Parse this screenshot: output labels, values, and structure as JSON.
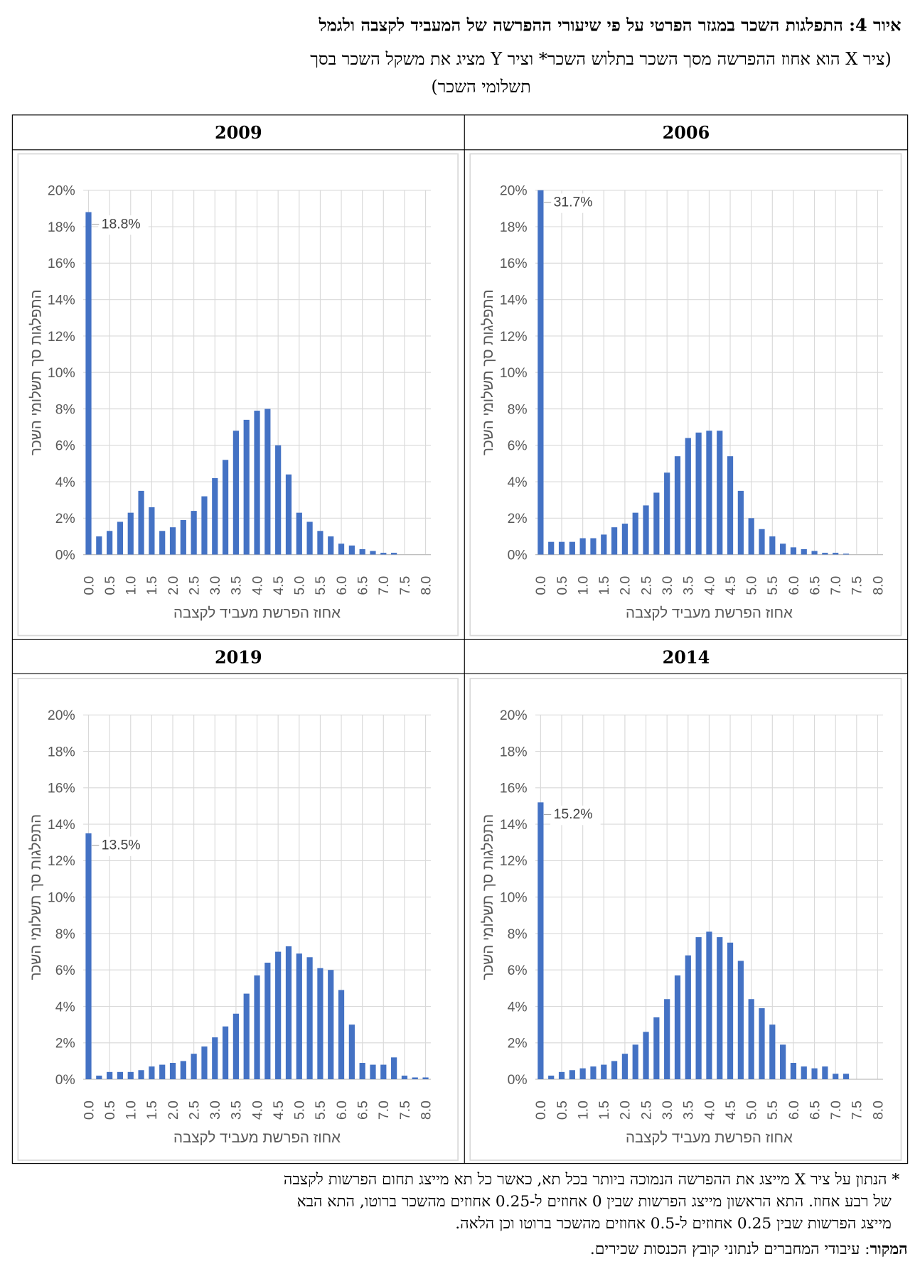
{
  "header": {
    "title": "איור 4: התפלגות השכר במגזר הפרטי על פי שיעורי ההפרשה של המעביד לקצבה ולגמל",
    "subtitle": [
      "(ציר X הוא אחוז ההפרשה מסך השכר בתלוש השכר* וציר Y מציג את משקל השכר בסך",
      "תשלומי השכר)"
    ]
  },
  "chart_data": [
    {
      "type": "bar",
      "title": "2006",
      "xlabel": "אחוז הפרשת מעביד לקצבה",
      "ylabel": "התפלגות סך תשלומי השכר",
      "color": "#4472c4",
      "grid": true,
      "categories": [
        "0.0",
        null,
        "0.5",
        null,
        "1.0",
        null,
        "1.5",
        null,
        "2.0",
        null,
        "2.5",
        null,
        "3.0",
        null,
        "3.5",
        null,
        "4.0",
        null,
        "4.5",
        null,
        "5.0",
        null,
        "5.5",
        null,
        "6.0",
        null,
        "6.5",
        null,
        "7.0",
        null,
        "7.5",
        null,
        "8.0"
      ],
      "values": [
        31.7,
        0.7,
        0.7,
        0.7,
        0.9,
        0.9,
        1.1,
        1.5,
        1.7,
        2.3,
        2.7,
        3.4,
        4.5,
        5.4,
        6.4,
        6.7,
        6.8,
        6.8,
        5.4,
        3.5,
        2.0,
        1.4,
        1.0,
        0.6,
        0.4,
        0.3,
        0.2,
        0.1,
        0.1,
        0.05,
        0,
        0,
        0
      ],
      "value_labels": [
        "31.7%",
        null,
        null,
        null,
        null,
        null,
        null,
        null,
        null,
        null,
        null,
        null,
        null,
        null,
        null,
        null,
        null,
        null,
        null,
        null,
        null,
        null,
        null,
        null,
        null,
        null,
        null,
        null,
        null,
        null,
        null,
        null,
        null
      ],
      "ylim": [
        0,
        20
      ],
      "yticks": [
        {
          "value": 0,
          "label": "0%"
        },
        {
          "value": 2,
          "label": "2%"
        },
        {
          "value": 4,
          "label": "4%"
        },
        {
          "value": 6,
          "label": "6%"
        },
        {
          "value": 8,
          "label": "8%"
        },
        {
          "value": 10,
          "label": "10%"
        },
        {
          "value": 12,
          "label": "12%"
        },
        {
          "value": 14,
          "label": "14%"
        },
        {
          "value": 16,
          "label": "16%"
        },
        {
          "value": 18,
          "label": "18%"
        },
        {
          "value": 20,
          "label": "20%"
        }
      ]
    },
    {
      "type": "bar",
      "title": "2009",
      "xlabel": "אחוז הפרשת מעביד לקצבה",
      "ylabel": "התפלגות סך תשלומי השכר",
      "color": "#4472c4",
      "grid": true,
      "categories": [
        "0.0",
        null,
        "0.5",
        null,
        "1.0",
        null,
        "1.5",
        null,
        "2.0",
        null,
        "2.5",
        null,
        "3.0",
        null,
        "3.5",
        null,
        "4.0",
        null,
        "4.5",
        null,
        "5.0",
        null,
        "5.5",
        null,
        "6.0",
        null,
        "6.5",
        null,
        "7.0",
        null,
        "7.5",
        null,
        "8.0"
      ],
      "values": [
        18.8,
        1.0,
        1.3,
        1.8,
        2.3,
        3.5,
        2.6,
        1.3,
        1.5,
        1.9,
        2.4,
        3.2,
        4.2,
        5.2,
        6.8,
        7.4,
        7.9,
        8.0,
        6.0,
        4.4,
        2.3,
        1.8,
        1.3,
        1.0,
        0.6,
        0.5,
        0.3,
        0.2,
        0.1,
        0.1,
        0,
        0,
        0
      ],
      "value_labels": [
        "18.8%",
        null,
        null,
        null,
        null,
        null,
        null,
        null,
        null,
        null,
        null,
        null,
        null,
        null,
        null,
        null,
        null,
        null,
        null,
        null,
        null,
        null,
        null,
        null,
        null,
        null,
        null,
        null,
        null,
        null,
        null,
        null,
        null
      ],
      "ylim": [
        0,
        20
      ],
      "yticks": [
        {
          "value": 0,
          "label": "0%"
        },
        {
          "value": 2,
          "label": "2%"
        },
        {
          "value": 4,
          "label": "4%"
        },
        {
          "value": 6,
          "label": "6%"
        },
        {
          "value": 8,
          "label": "8%"
        },
        {
          "value": 10,
          "label": "10%"
        },
        {
          "value": 12,
          "label": "12%"
        },
        {
          "value": 14,
          "label": "14%"
        },
        {
          "value": 16,
          "label": "16%"
        },
        {
          "value": 18,
          "label": "18%"
        },
        {
          "value": 20,
          "label": "20%"
        }
      ]
    },
    {
      "type": "bar",
      "title": "2014",
      "xlabel": "אחוז הפרשת מעביד לקצבה",
      "ylabel": "התפלגות סך תשלומי השכר",
      "color": "#4472c4",
      "grid": true,
      "categories": [
        "0.0",
        null,
        "0.5",
        null,
        "1.0",
        null,
        "1.5",
        null,
        "2.0",
        null,
        "2.5",
        null,
        "3.0",
        null,
        "3.5",
        null,
        "4.0",
        null,
        "4.5",
        null,
        "5.0",
        null,
        "5.5",
        null,
        "6.0",
        null,
        "6.5",
        null,
        "7.0",
        null,
        "7.5",
        null,
        "8.0"
      ],
      "values": [
        15.2,
        0.2,
        0.4,
        0.5,
        0.6,
        0.7,
        0.8,
        1.0,
        1.4,
        1.9,
        2.6,
        3.4,
        4.4,
        5.7,
        6.8,
        7.8,
        8.1,
        7.8,
        7.5,
        6.5,
        4.4,
        3.9,
        3.0,
        1.9,
        0.9,
        0.7,
        0.6,
        0.7,
        0.3,
        0.3,
        0,
        0,
        0
      ],
      "value_labels": [
        "15.2%",
        null,
        null,
        null,
        null,
        null,
        null,
        null,
        null,
        null,
        null,
        null,
        null,
        null,
        null,
        null,
        null,
        null,
        null,
        null,
        null,
        null,
        null,
        null,
        null,
        null,
        null,
        null,
        null,
        null,
        null,
        null,
        null
      ],
      "ylim": [
        0,
        20
      ],
      "yticks": [
        {
          "value": 0,
          "label": "0%"
        },
        {
          "value": 2,
          "label": "2%"
        },
        {
          "value": 4,
          "label": "4%"
        },
        {
          "value": 6,
          "label": "6%"
        },
        {
          "value": 8,
          "label": "8%"
        },
        {
          "value": 10,
          "label": "10%"
        },
        {
          "value": 12,
          "label": "12%"
        },
        {
          "value": 14,
          "label": "14%"
        },
        {
          "value": 16,
          "label": "16%"
        },
        {
          "value": 18,
          "label": "18%"
        },
        {
          "value": 20,
          "label": "20%"
        }
      ]
    },
    {
      "type": "bar",
      "title": "2019",
      "xlabel": "אחוז הפרשת מעביד לקצבה",
      "ylabel": "התפלגות סך תשלומי השכר",
      "color": "#4472c4",
      "grid": true,
      "categories": [
        "0.0",
        null,
        "0.5",
        null,
        "1.0",
        null,
        "1.5",
        null,
        "2.0",
        null,
        "2.5",
        null,
        "3.0",
        null,
        "3.5",
        null,
        "4.0",
        null,
        "4.5",
        null,
        "5.0",
        null,
        "5.5",
        null,
        "6.0",
        null,
        "6.5",
        null,
        "7.0",
        null,
        "7.5",
        null,
        "8.0"
      ],
      "values": [
        13.5,
        0.2,
        0.4,
        0.4,
        0.4,
        0.5,
        0.7,
        0.8,
        0.9,
        1.0,
        1.4,
        1.8,
        2.3,
        2.9,
        3.6,
        4.7,
        5.7,
        6.4,
        7.0,
        7.3,
        6.9,
        6.7,
        6.1,
        6.0,
        4.9,
        3.0,
        0.9,
        0.8,
        0.8,
        1.2,
        0.2,
        0.1,
        0.1
      ],
      "value_labels": [
        "13.5%",
        null,
        null,
        null,
        null,
        null,
        null,
        null,
        null,
        null,
        null,
        null,
        null,
        null,
        null,
        null,
        null,
        null,
        null,
        null,
        null,
        null,
        null,
        null,
        null,
        null,
        null,
        null,
        null,
        null,
        null,
        null,
        null
      ],
      "ylim": [
        0,
        20
      ],
      "yticks": [
        {
          "value": 0,
          "label": "0%"
        },
        {
          "value": 2,
          "label": "2%"
        },
        {
          "value": 4,
          "label": "4%"
        },
        {
          "value": 6,
          "label": "6%"
        },
        {
          "value": 8,
          "label": "8%"
        },
        {
          "value": 10,
          "label": "10%"
        },
        {
          "value": 12,
          "label": "12%"
        },
        {
          "value": 14,
          "label": "14%"
        },
        {
          "value": 16,
          "label": "16%"
        },
        {
          "value": 18,
          "label": "18%"
        },
        {
          "value": 20,
          "label": "20%"
        }
      ]
    }
  ],
  "footnote": [
    "* הנתון על ציר X מייצג את ההפרשה הנמוכה ביותר בכל תא, כאשר כל תא מייצג תחום הפרשות לקצבה",
    "של רבע אחוז. התא הראשון מייצג הפרשות שבין 0 אחוזים ל-0.25 אחוזים מהשכר ברוטו, התא הבא",
    "מייצג הפרשות שבין 0.25 אחוזים ל-0.5 אחוזים מהשכר ברוטו וכן הלאה."
  ],
  "source": {
    "label": "המקור",
    "text": ": עיבודי המחברים לנתוני קובץ הכנסות שכירים."
  }
}
